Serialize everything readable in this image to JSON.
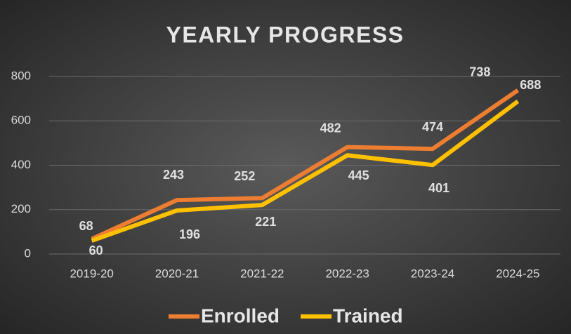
{
  "chart_data": {
    "type": "line",
    "title": "YEARLY PROGRESS",
    "categories": [
      "2019-20",
      "2020-21",
      "2021-22",
      "2022-23",
      "2023-24",
      "2024-25"
    ],
    "series": [
      {
        "name": "Enrolled",
        "color": "#ed7d31",
        "values": [
          68,
          243,
          252,
          482,
          474,
          738
        ]
      },
      {
        "name": "Trained",
        "color": "#ffc000",
        "values": [
          60,
          196,
          221,
          445,
          401,
          688
        ]
      }
    ],
    "ylim": [
      0,
      800
    ],
    "yticks": [
      0,
      200,
      400,
      600,
      800
    ],
    "grid": true,
    "legend": "bottom"
  }
}
